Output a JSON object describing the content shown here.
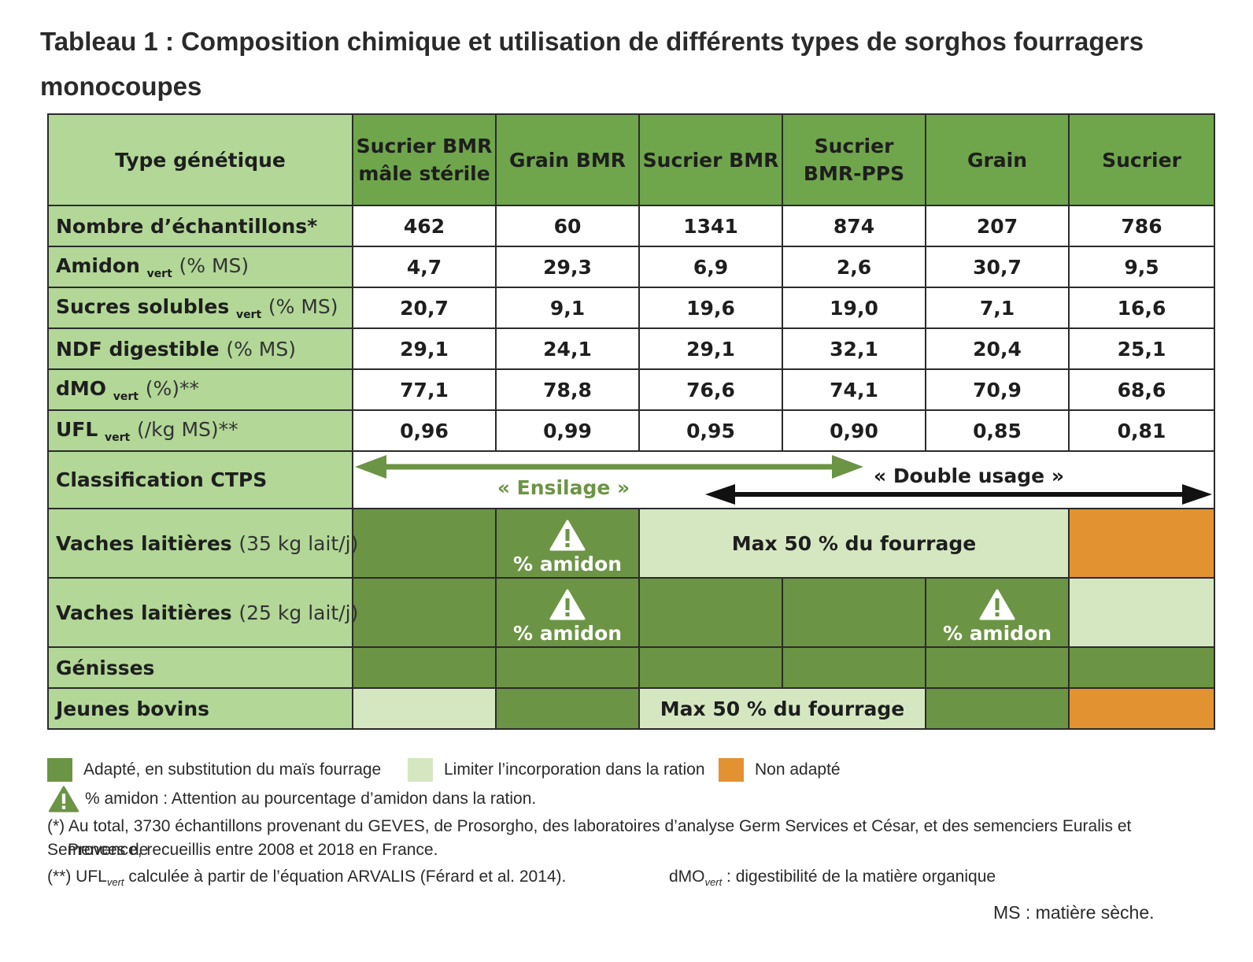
{
  "title": "Tableau 1 : Composition chimique et utilisation de différents types de sorghos fourragers monocoupes",
  "table": {
    "header_label": "Type génétique",
    "columns": [
      "Sucrier BMR mâle stérile",
      "Grain BMR",
      "Sucrier BMR",
      "Sucrier BMR-PPS",
      "Grain",
      "Sucrier"
    ],
    "rows": [
      {
        "label": "Nombre d’échantillons*",
        "sub": "",
        "unit": "",
        "values": [
          "462",
          "60",
          "1341",
          "874",
          "207",
          "786"
        ]
      },
      {
        "label": "Amidon",
        "sub": "vert",
        "unit": "(% MS)",
        "values": [
          "4,7",
          "29,3",
          "6,9",
          "2,6",
          "30,7",
          "9,5"
        ]
      },
      {
        "label": "Sucres solubles",
        "sub": "vert",
        "unit": "(% MS)",
        "values": [
          "20,7",
          "9,1",
          "19,6",
          "19,0",
          "7,1",
          "16,6"
        ]
      },
      {
        "label": "NDF digestible",
        "sub": "",
        "unit": "(% MS)",
        "values": [
          "29,1",
          "24,1",
          "29,1",
          "32,1",
          "20,4",
          "25,1"
        ]
      },
      {
        "label": "dMO",
        "sub": "vert",
        "unit": "(%)**",
        "values": [
          "77,1",
          "78,8",
          "76,6",
          "74,1",
          "70,9",
          "68,6"
        ]
      },
      {
        "label": "UFL",
        "sub": "vert",
        "unit": "(/kg MS)**",
        "values": [
          "0,96",
          "0,99",
          "0,95",
          "0,90",
          "0,85",
          "0,81"
        ]
      }
    ],
    "classification": {
      "label": "Classification CTPS",
      "ensilage": "« Ensilage »",
      "double_usage": "« Double usage »"
    },
    "usage_rows": {
      "vl35_label": "Vaches laitières",
      "vl35_unit": "(35 kg lait/j)",
      "vl25_label": "Vaches laitières",
      "vl25_unit": "(25 kg lait/j)",
      "genisses_label": "Génisses",
      "jb_label": "Jeunes bovins",
      "amidon_warning": "% amidon",
      "max50": "Max 50 % du fourrage"
    }
  },
  "colors": {
    "adapted": "#6b9444",
    "limit": "#d4e7c1",
    "not_adapted": "#e39232",
    "header_green": "#6fa64b",
    "label_green": "#b2d797"
  },
  "legend": {
    "adapted": "Adapté, en substitution du maïs fourrage",
    "limit": "Limiter l’incorporation dans la ration",
    "not_adapted": "Non adapté",
    "amidon_note": "% amidon : Attention au pourcentage d’amidon dans la ration.",
    "note1": "(*) Au total, 3730 échantillons provenant du GEVES, de Prosorgho, des laboratoires d’analyse Germ Services et César, et des semenciers Euralis et Semences de",
    "note1b": "Provence, recueillis entre 2008 et 2018 en France.",
    "note2_pre": "(**) UFL",
    "note2_sub": "vert",
    "note2_post": " calculée à partir de l’équation ARVALIS (Férard et al. 2014).",
    "note3_pre": "dMO",
    "note3_sub": "vert",
    "note3_post": " : digestibilité de la matière organique",
    "ms_note": "MS : matière sèche."
  }
}
